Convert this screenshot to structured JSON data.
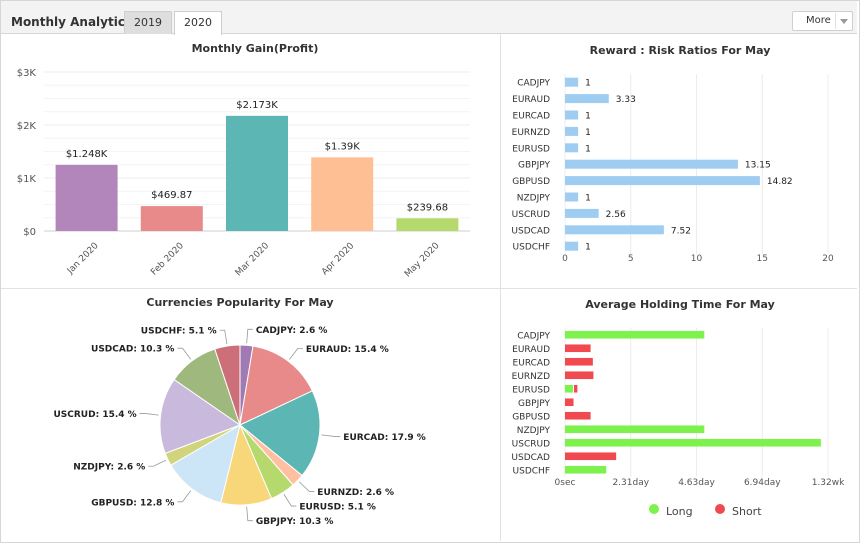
{
  "header": {
    "title": "Monthly Analytics",
    "tabs": [
      {
        "label": "2019"
      },
      {
        "label": "2020"
      }
    ],
    "more_label": "More"
  },
  "chart_data": [
    {
      "type": "bar",
      "title": "Monthly Gain(Profit)",
      "categories": [
        "Jan 2020",
        "Feb 2020",
        "Mar 2020",
        "Apr 2020",
        "May 2020"
      ],
      "values": [
        1248,
        469.87,
        2173,
        1390,
        239.68
      ],
      "data_labels": [
        "$1.248K",
        "$469.87",
        "$2.173K",
        "$1.39K",
        "$239.68"
      ],
      "colors": [
        "#b285bb",
        "#e88a8a",
        "#5cb7b4",
        "#ffbf94",
        "#b6d96e"
      ],
      "yticks": [
        "$0",
        "$1K",
        "$2K",
        "$3K"
      ],
      "ylim": [
        0,
        3000
      ]
    },
    {
      "type": "bar",
      "orientation": "horizontal",
      "title": "Reward : Risk Ratios For May",
      "categories": [
        "CADJPY",
        "EURAUD",
        "EURCAD",
        "EURNZD",
        "EURUSD",
        "GBPJPY",
        "GBPUSD",
        "NZDJPY",
        "USCRUD",
        "USDCAD",
        "USDCHF"
      ],
      "values": [
        1,
        3.33,
        1,
        1,
        1,
        13.15,
        14.82,
        1,
        2.56,
        7.52,
        1
      ],
      "data_labels": [
        "1",
        "3.33",
        "1",
        "1",
        "1",
        "13.15",
        "14.82",
        "1",
        "2.56",
        "7.52",
        "1"
      ],
      "color": "#9fcdf2",
      "xticks": [
        "0",
        "5",
        "10",
        "15",
        "20"
      ],
      "xlim": [
        0,
        20
      ]
    },
    {
      "type": "pie",
      "title": "Currencies Popularity For May",
      "slices": [
        {
          "label": "CADJPY",
          "value": 2.6,
          "text": "CADJPY: 2.6 %",
          "color": "#a07ab3"
        },
        {
          "label": "EURAUD",
          "value": 15.4,
          "text": "EURAUD: 15.4 %",
          "color": "#e88a8a"
        },
        {
          "label": "EURCAD",
          "value": 17.9,
          "text": "EURCAD: 17.9 %",
          "color": "#5cb7b4"
        },
        {
          "label": "EURNZD",
          "value": 2.6,
          "text": "EURNZD: 2.6 %",
          "color": "#ffbfa0"
        },
        {
          "label": "EURUSD",
          "value": 5.1,
          "text": "EURUSD: 5.1 %",
          "color": "#b6d96e"
        },
        {
          "label": "GBPJPY",
          "value": 10.3,
          "text": "GBPJPY: 10.3 %",
          "color": "#f8d67a"
        },
        {
          "label": "GBPUSD",
          "value": 12.8,
          "text": "GBPUSD: 12.8 %",
          "color": "#cce6f7"
        },
        {
          "label": "NZDJPY",
          "value": 2.6,
          "text": "NZDJPY: 2.6 %",
          "color": "#d1d47c"
        },
        {
          "label": "USCRUD",
          "value": 15.4,
          "text": "USCRUD: 15.4 %",
          "color": "#c9b9dc"
        },
        {
          "label": "USDCAD",
          "value": 10.3,
          "text": "USDCAD: 10.3 %",
          "color": "#9fb87e"
        },
        {
          "label": "USDCHF",
          "value": 5.1,
          "text": "USDCHF: 5.1 %",
          "color": "#cc6f78"
        }
      ]
    },
    {
      "type": "bar",
      "orientation": "horizontal",
      "title": "Average Holding Time For May",
      "categories": [
        "CADJPY",
        "EURAUD",
        "EURCAD",
        "EURNZD",
        "EURUSD",
        "GBPJPY",
        "GBPUSD",
        "NZDJPY",
        "USCRUD",
        "USDCAD",
        "USDCHF"
      ],
      "xticks": [
        "0sec",
        "2.31day",
        "4.63day",
        "6.94day",
        "1.32wk"
      ],
      "xlim_days": [
        0,
        9.25
      ],
      "legend": "bottom",
      "series": [
        {
          "name": "Long",
          "color": "#7df24c",
          "values_days": [
            4.9,
            0,
            0,
            0,
            0.28,
            0,
            0,
            4.9,
            9.0,
            0,
            1.45
          ]
        },
        {
          "name": "Short",
          "color": "#f04a50",
          "values_days": [
            0,
            0.9,
            0.98,
            1.0,
            0.12,
            0.3,
            0.9,
            0,
            0,
            1.8,
            0
          ]
        }
      ]
    }
  ]
}
